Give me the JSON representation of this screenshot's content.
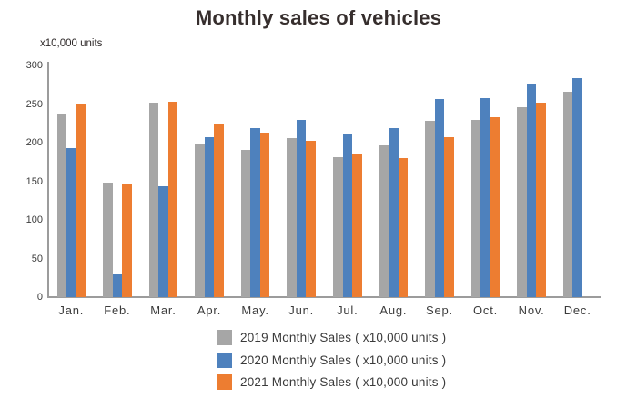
{
  "chart": {
    "title": "Monthly sales of vehicles",
    "units_label": "x10,000 units"
  },
  "chart_data": {
    "type": "bar",
    "title": "Monthly sales of vehicles",
    "ylabel": "x10,000 units",
    "xlabel": "",
    "categories": [
      "Jan.",
      "Feb.",
      "Mar.",
      "Apr.",
      "May.",
      "Jun.",
      "Jul.",
      "Aug.",
      "Sep.",
      "Oct.",
      "Nov.",
      "Dec."
    ],
    "series": [
      {
        "name": "2019 Monthly Sales ( x10,000 units )",
        "color": "#a6a6a6",
        "values": [
          237,
          148,
          252,
          198,
          191,
          206,
          181,
          196,
          228,
          229,
          246,
          266
        ]
      },
      {
        "name": "2020 Monthly Sales ( x10,000 units )",
        "color": "#4e81bd",
        "values": [
          193,
          31,
          143,
          207,
          219,
          230,
          211,
          219,
          257,
          258,
          277,
          283
        ]
      },
      {
        "name": "2021 Monthly Sales ( x10,000 units )",
        "color": "#ed7d31",
        "values": [
          250,
          146,
          253,
          225,
          213,
          202,
          186,
          180,
          207,
          233,
          252,
          null
        ]
      }
    ],
    "ylim": [
      0,
      300
    ],
    "yticks": [
      0,
      50,
      100,
      150,
      200,
      250,
      300
    ],
    "grid": false,
    "legend_position": "bottom",
    "axis_color": "#9c9c9c"
  }
}
